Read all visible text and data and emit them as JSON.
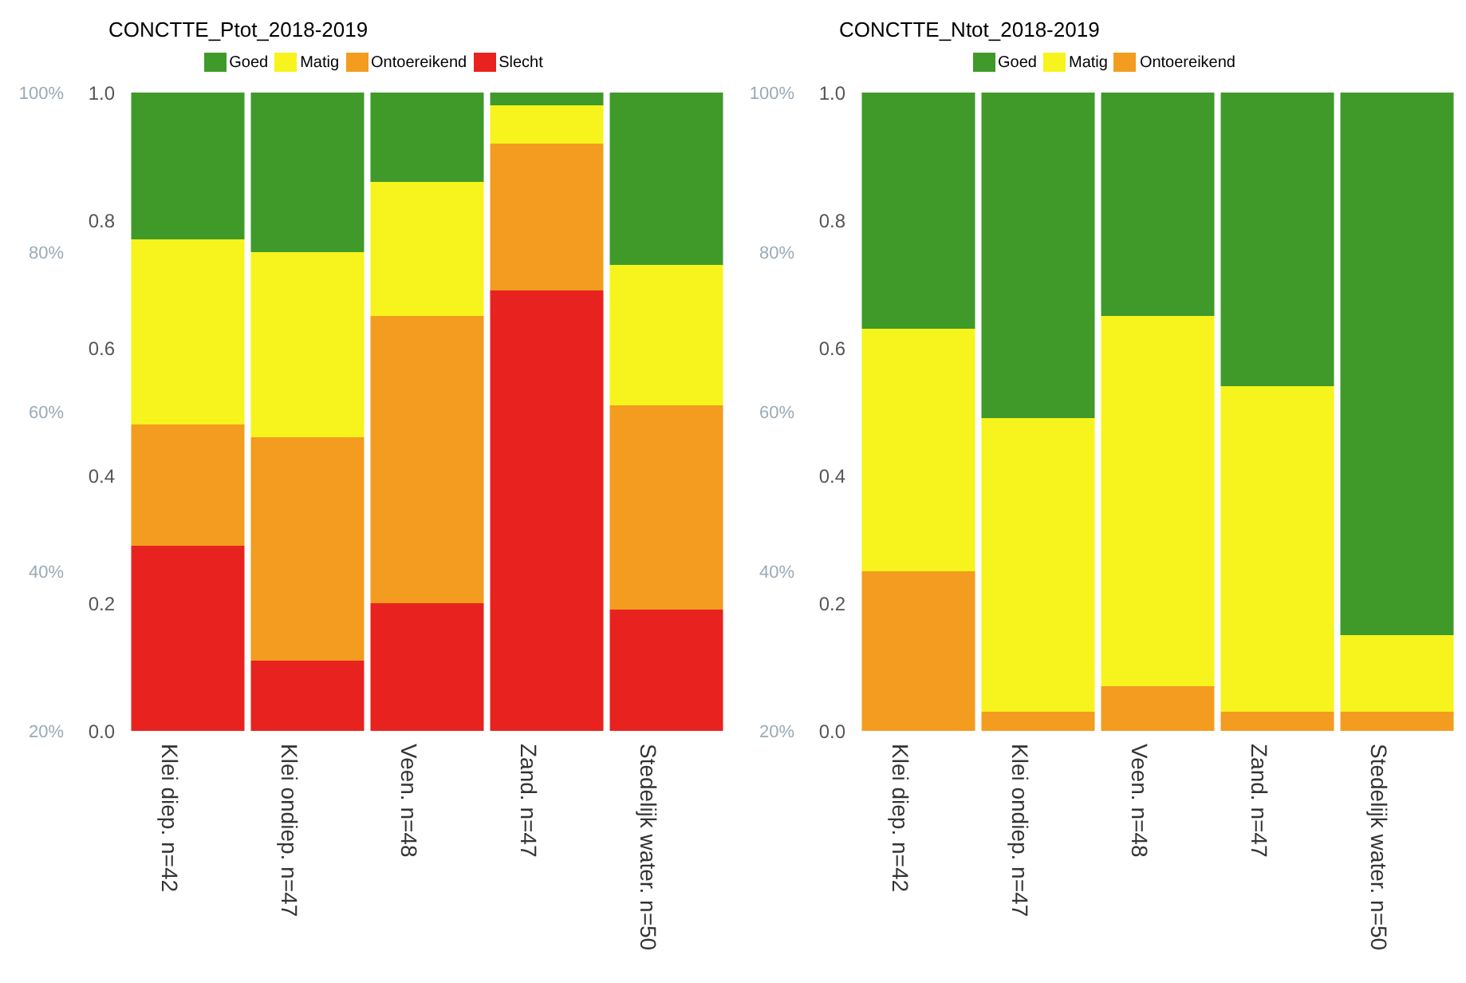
{
  "chart_data": [
    {
      "type": "bar",
      "title": "CONCTTE_Ptot_2018-2019",
      "stacked": true,
      "legend": "top",
      "grid": false,
      "categories": [
        "Klei diep. n=42",
        "Klei ondiep. n=47",
        "Veen. n=48",
        "Zand. n=47",
        "Stedelijk water. n=50"
      ],
      "series": [
        {
          "name": "Slecht",
          "color": "#e8231f",
          "values": [
            0.29,
            0.11,
            0.2,
            0.69,
            0.19
          ]
        },
        {
          "name": "Ontoereikend",
          "color": "#f39c1f",
          "values": [
            0.19,
            0.35,
            0.45,
            0.23,
            0.32
          ]
        },
        {
          "name": "Matig",
          "color": "#f7f31c",
          "values": [
            0.29,
            0.29,
            0.21,
            0.06,
            0.22
          ]
        },
        {
          "name": "Goed",
          "color": "#3f9a2a",
          "values": [
            0.23,
            0.25,
            0.14,
            0.02,
            0.27
          ]
        }
      ],
      "ylim": [
        0,
        1
      ],
      "yticks": [
        {
          "value": 0,
          "label": "0.0"
        },
        {
          "value": 0.2,
          "label": "0.2"
        },
        {
          "value": 0.4,
          "label": "0.4"
        },
        {
          "value": 0.6,
          "label": "0.6"
        },
        {
          "value": 0.8,
          "label": "0.8"
        },
        {
          "value": 1,
          "label": "1.0"
        }
      ],
      "y2lim": [
        20,
        100
      ],
      "y2ticks": [
        {
          "value": 20,
          "label": "20%"
        },
        {
          "value": 40,
          "label": "40%"
        },
        {
          "value": 60,
          "label": "60%"
        },
        {
          "value": 80,
          "label": "80%"
        },
        {
          "value": 100,
          "label": "100%"
        }
      ]
    },
    {
      "type": "bar",
      "title": "CONCTTE_Ntot_2018-2019",
      "stacked": true,
      "legend": "top",
      "grid": false,
      "categories": [
        "Klei diep. n=42",
        "Klei ondiep. n=47",
        "Veen. n=48",
        "Zand. n=47",
        "Stedelijk water. n=50"
      ],
      "series": [
        {
          "name": "Ontoereikend",
          "color": "#f39c1f",
          "values": [
            0.25,
            0.03,
            0.07,
            0.03,
            0.03
          ]
        },
        {
          "name": "Matig",
          "color": "#f7f31c",
          "values": [
            0.38,
            0.46,
            0.58,
            0.51,
            0.12
          ]
        },
        {
          "name": "Goed",
          "color": "#3f9a2a",
          "values": [
            0.37,
            0.51,
            0.35,
            0.46,
            0.85
          ]
        }
      ],
      "ylim": [
        0,
        1
      ],
      "yticks": [
        {
          "value": 0,
          "label": "0.0"
        },
        {
          "value": 0.2,
          "label": "0.2"
        },
        {
          "value": 0.4,
          "label": "0.4"
        },
        {
          "value": 0.6,
          "label": "0.6"
        },
        {
          "value": 0.8,
          "label": "0.8"
        },
        {
          "value": 1,
          "label": "1.0"
        }
      ],
      "y2lim": [
        20,
        100
      ],
      "y2ticks": [
        {
          "value": 20,
          "label": "20%"
        },
        {
          "value": 40,
          "label": "40%"
        },
        {
          "value": 60,
          "label": "60%"
        },
        {
          "value": 80,
          "label": "80%"
        },
        {
          "value": 100,
          "label": "100%"
        }
      ]
    }
  ]
}
